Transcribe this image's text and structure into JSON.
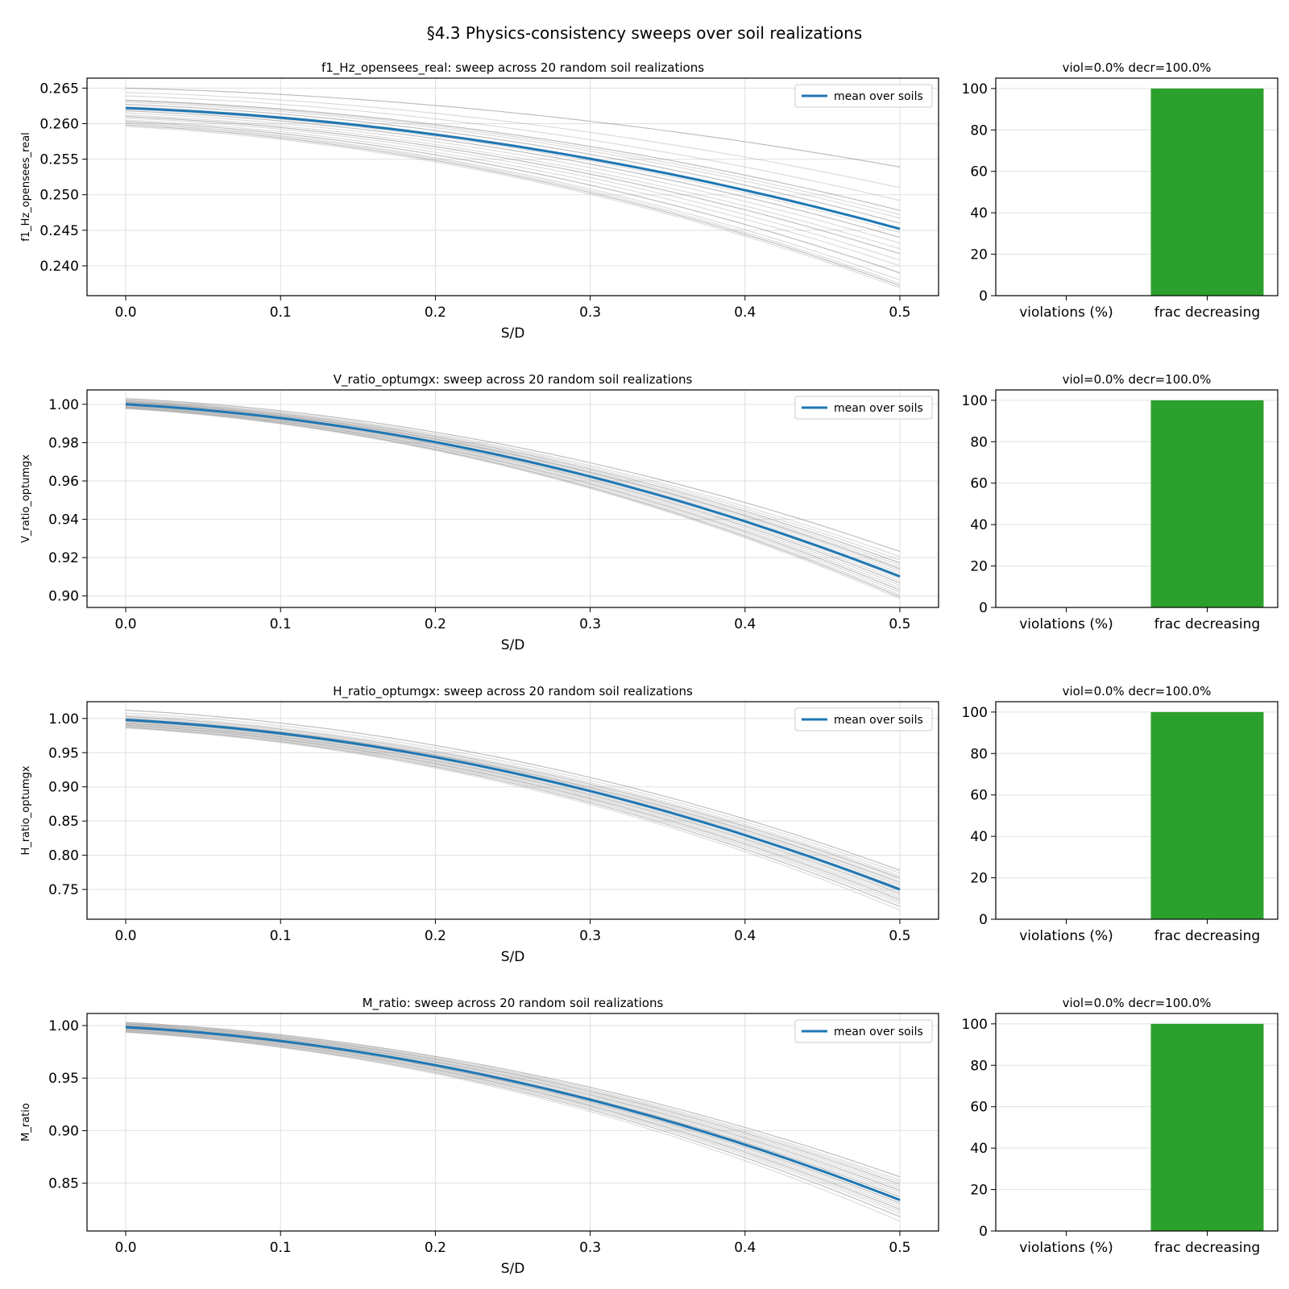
{
  "figure": {
    "suptitle": "§4.3 Physics-consistency sweeps over soil realizations"
  },
  "colors": {
    "mean_line": "#1f77b4",
    "soil_line": "#808080",
    "bar": "#2ca02c",
    "grid": "#e0e0e0",
    "axis": "#000000"
  },
  "chart_data": [
    {
      "type": "line",
      "title": "f1_Hz_opensees_real: sweep across 20 random soil realizations",
      "xlabel": "S/D",
      "ylabel": "f1_Hz_opensees_real",
      "xlim": [
        -0.025,
        0.525
      ],
      "ylim": [
        0.2358,
        0.2664
      ],
      "xticks": [
        "0.0",
        "0.1",
        "0.2",
        "0.3",
        "0.4",
        "0.5"
      ],
      "yticks": [
        "0.240",
        "0.245",
        "0.250",
        "0.255",
        "0.260",
        "0.265"
      ],
      "legend": {
        "label": "mean over soils",
        "position": "upper right"
      },
      "mean": {
        "start": 0.2622,
        "end": 0.2452
      },
      "soils": [
        [
          0.265,
          0.2539
        ],
        [
          0.2644,
          0.251
        ],
        [
          0.2639,
          0.2492
        ],
        [
          0.2633,
          0.2478
        ],
        [
          0.2632,
          0.2472
        ],
        [
          0.263,
          0.2467
        ],
        [
          0.2627,
          0.246
        ],
        [
          0.2624,
          0.2452
        ],
        [
          0.262,
          0.2447
        ],
        [
          0.2618,
          0.244
        ],
        [
          0.2615,
          0.2432
        ],
        [
          0.2612,
          0.2424
        ],
        [
          0.261,
          0.2417
        ],
        [
          0.2608,
          0.2408
        ],
        [
          0.2605,
          0.24
        ],
        [
          0.2603,
          0.239
        ],
        [
          0.2601,
          0.238
        ],
        [
          0.26,
          0.2375
        ],
        [
          0.2598,
          0.2372
        ],
        [
          0.2596,
          0.2369
        ]
      ],
      "sidebar": {
        "title": "viol=0.0%  decr=100.0%",
        "categories": [
          "violations (%)",
          "frac decreasing"
        ],
        "values": [
          0,
          100
        ],
        "ylim": [
          0,
          105
        ],
        "yticks": [
          "0",
          "20",
          "40",
          "60",
          "80",
          "100"
        ]
      }
    },
    {
      "type": "line",
      "title": "V_ratio_optumgx: sweep across 20 random soil realizations",
      "xlabel": "S/D",
      "ylabel": "V_ratio_optumgx",
      "xlim": [
        -0.025,
        0.525
      ],
      "ylim": [
        0.894,
        1.0075
      ],
      "xticks": [
        "0.0",
        "0.1",
        "0.2",
        "0.3",
        "0.4",
        "0.5"
      ],
      "yticks": [
        "0.90",
        "0.92",
        "0.94",
        "0.96",
        "0.98",
        "1.00"
      ],
      "legend": {
        "label": "mean over soils",
        "position": "upper right"
      },
      "mean": {
        "start": 1.0,
        "end": 0.9102
      },
      "soils": [
        [
          1.003,
          0.9232
        ],
        [
          1.0025,
          0.9205
        ],
        [
          1.0022,
          0.9188
        ],
        [
          1.0018,
          0.9172
        ],
        [
          1.0015,
          0.916
        ],
        [
          1.0012,
          0.9148
        ],
        [
          1.001,
          0.914
        ],
        [
          1.0008,
          0.913
        ],
        [
          1.0005,
          0.9118
        ],
        [
          1.0003,
          0.9105
        ],
        [
          1.0,
          0.9092
        ],
        [
          0.9998,
          0.908
        ],
        [
          0.9995,
          0.9068
        ],
        [
          0.9992,
          0.9055
        ],
        [
          0.999,
          0.9042
        ],
        [
          0.9987,
          0.903
        ],
        [
          0.9985,
          0.9018
        ],
        [
          0.9982,
          0.9005
        ],
        [
          0.998,
          0.8995
        ],
        [
          0.9977,
          0.8985
        ]
      ],
      "sidebar": {
        "title": "viol=0.0%  decr=100.0%",
        "categories": [
          "violations (%)",
          "frac decreasing"
        ],
        "values": [
          0,
          100
        ],
        "ylim": [
          0,
          105
        ],
        "yticks": [
          "0",
          "20",
          "40",
          "60",
          "80",
          "100"
        ]
      }
    },
    {
      "type": "line",
      "title": "H_ratio_optumgx: sweep across 20 random soil realizations",
      "xlabel": "S/D",
      "ylabel": "H_ratio_optumgx",
      "xlim": [
        -0.025,
        0.525
      ],
      "ylim": [
        0.7065,
        1.0245
      ],
      "xticks": [
        "0.0",
        "0.1",
        "0.2",
        "0.3",
        "0.4",
        "0.5"
      ],
      "yticks": [
        "0.75",
        "0.80",
        "0.85",
        "0.90",
        "0.95",
        "1.00"
      ],
      "legend": {
        "label": "mean over soils",
        "position": "upper right"
      },
      "mean": {
        "start": 0.998,
        "end": 0.75
      },
      "soils": [
        [
          1.012,
          0.778
        ],
        [
          1.008,
          0.774
        ],
        [
          1.005,
          0.77
        ],
        [
          1.003,
          0.767
        ],
        [
          1.001,
          0.765
        ],
        [
          1.0,
          0.762
        ],
        [
          0.999,
          0.76
        ],
        [
          0.998,
          0.757
        ],
        [
          0.997,
          0.755
        ],
        [
          0.996,
          0.752
        ],
        [
          0.995,
          0.75
        ],
        [
          0.994,
          0.747
        ],
        [
          0.993,
          0.744
        ],
        [
          0.992,
          0.741
        ],
        [
          0.991,
          0.738
        ],
        [
          0.99,
          0.735
        ],
        [
          0.989,
          0.732
        ],
        [
          0.988,
          0.729
        ],
        [
          0.987,
          0.725
        ],
        [
          0.986,
          0.72
        ]
      ],
      "sidebar": {
        "title": "viol=0.0%  decr=100.0%",
        "categories": [
          "violations (%)",
          "frac decreasing"
        ],
        "values": [
          0,
          100
        ],
        "ylim": [
          0,
          105
        ],
        "yticks": [
          "0",
          "20",
          "40",
          "60",
          "80",
          "100"
        ]
      }
    },
    {
      "type": "line",
      "title": "M_ratio: sweep across 20 random soil realizations",
      "xlabel": "S/D",
      "ylabel": "M_ratio",
      "xlim": [
        -0.025,
        0.525
      ],
      "ylim": [
        0.8045,
        1.0115
      ],
      "xticks": [
        "0.0",
        "0.1",
        "0.2",
        "0.3",
        "0.4",
        "0.5"
      ],
      "yticks": [
        "0.85",
        "0.90",
        "0.95",
        "1.00"
      ],
      "legend": {
        "label": "mean over soils",
        "position": "upper right"
      },
      "mean": {
        "start": 0.9985,
        "end": 0.834
      },
      "soils": [
        [
          1.003,
          0.856
        ],
        [
          1.0025,
          0.853
        ],
        [
          1.002,
          0.851
        ],
        [
          1.0015,
          0.849
        ],
        [
          1.001,
          0.847
        ],
        [
          1.0005,
          0.845
        ],
        [
          1.0,
          0.843
        ],
        [
          0.9995,
          0.841
        ],
        [
          0.999,
          0.839
        ],
        [
          0.9985,
          0.837
        ],
        [
          0.998,
          0.835
        ],
        [
          0.9975,
          0.833
        ],
        [
          0.997,
          0.831
        ],
        [
          0.9965,
          0.829
        ],
        [
          0.996,
          0.827
        ],
        [
          0.9955,
          0.825
        ],
        [
          0.995,
          0.823
        ],
        [
          0.9945,
          0.821
        ],
        [
          0.994,
          0.818
        ],
        [
          0.9935,
          0.814
        ]
      ],
      "sidebar": {
        "title": "viol=0.0%  decr=100.0%",
        "categories": [
          "violations (%)",
          "frac decreasing"
        ],
        "values": [
          0,
          100
        ],
        "ylim": [
          0,
          105
        ],
        "yticks": [
          "0",
          "20",
          "40",
          "60",
          "80",
          "100"
        ]
      }
    }
  ]
}
